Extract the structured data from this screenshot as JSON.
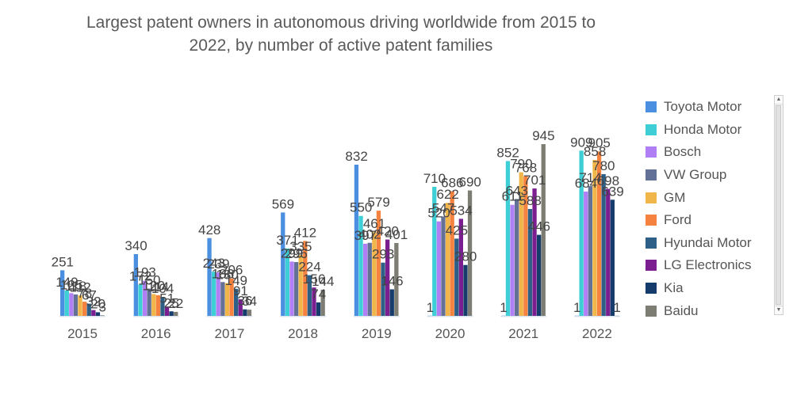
{
  "chart_data": {
    "type": "bar",
    "title": "Largest patent owners in autonomous driving worldwide from 2015 to 2022, by number of active patent families",
    "xlabel": "",
    "ylabel": "",
    "ylim": [
      0,
      1000
    ],
    "grid": false,
    "legend_position": "right",
    "categories": [
      "2015",
      "2016",
      "2017",
      "2018",
      "2019",
      "2020",
      "2021",
      "2022"
    ],
    "series": [
      {
        "name": "Toyota Motor",
        "color": "#4a8fe0",
        "values": [
          251,
          340,
          428,
          569,
          832,
          1,
          1,
          1
        ]
      },
      {
        "name": "Honda Motor",
        "color": "#3ecfd6",
        "values": [
          140,
          172,
          243,
          371,
          550,
          710,
          852,
          909
        ]
      },
      {
        "name": "Bosch",
        "color": "#b07ff5",
        "values": [
          125,
          193,
          239,
          299,
          397,
          520,
          611,
          684
        ]
      },
      {
        "name": "VW Group",
        "color": "#647196",
        "values": [
          118,
          150,
          186,
          296,
          402,
          547,
          643,
          714
        ]
      },
      {
        "name": "GM",
        "color": "#f0b64a",
        "values": [
          112,
          120,
          180,
          335,
          461,
          622,
          790,
          858
        ]
      },
      {
        "name": "Ford",
        "color": "#f5823e",
        "values": [
          78,
          114,
          206,
          412,
          579,
          686,
          768,
          905
        ]
      },
      {
        "name": "Hyundai Motor",
        "color": "#2e5f87",
        "values": [
          67,
          104,
          149,
          224,
          293,
          425,
          588,
          780
        ]
      },
      {
        "name": "LG Electronics",
        "color": "#7a1e90",
        "values": [
          32,
          51,
          91,
          156,
          420,
          534,
          701,
          698
        ]
      },
      {
        "name": "Kia",
        "color": "#153c6b",
        "values": [
          20,
          25,
          36,
          74,
          146,
          280,
          446,
          639
        ]
      },
      {
        "name": "Baidu",
        "color": "#7d7d73",
        "values": [
          3,
          22,
          34,
          144,
          401,
          690,
          945,
          1
        ]
      }
    ]
  },
  "title_line1": "Largest patent owners in autonomous driving worldwide from 2015 to",
  "title_line2": "2022, by number of active patent families",
  "legend": {
    "items": [
      "Toyota Motor",
      "Honda Motor",
      "Bosch",
      "VW Group",
      "GM",
      "Ford",
      "Hyundai Motor",
      "LG Electronics",
      "Kia",
      "Baidu"
    ],
    "scroll_up_icon": "▲",
    "scroll_down_icon": "▼"
  }
}
